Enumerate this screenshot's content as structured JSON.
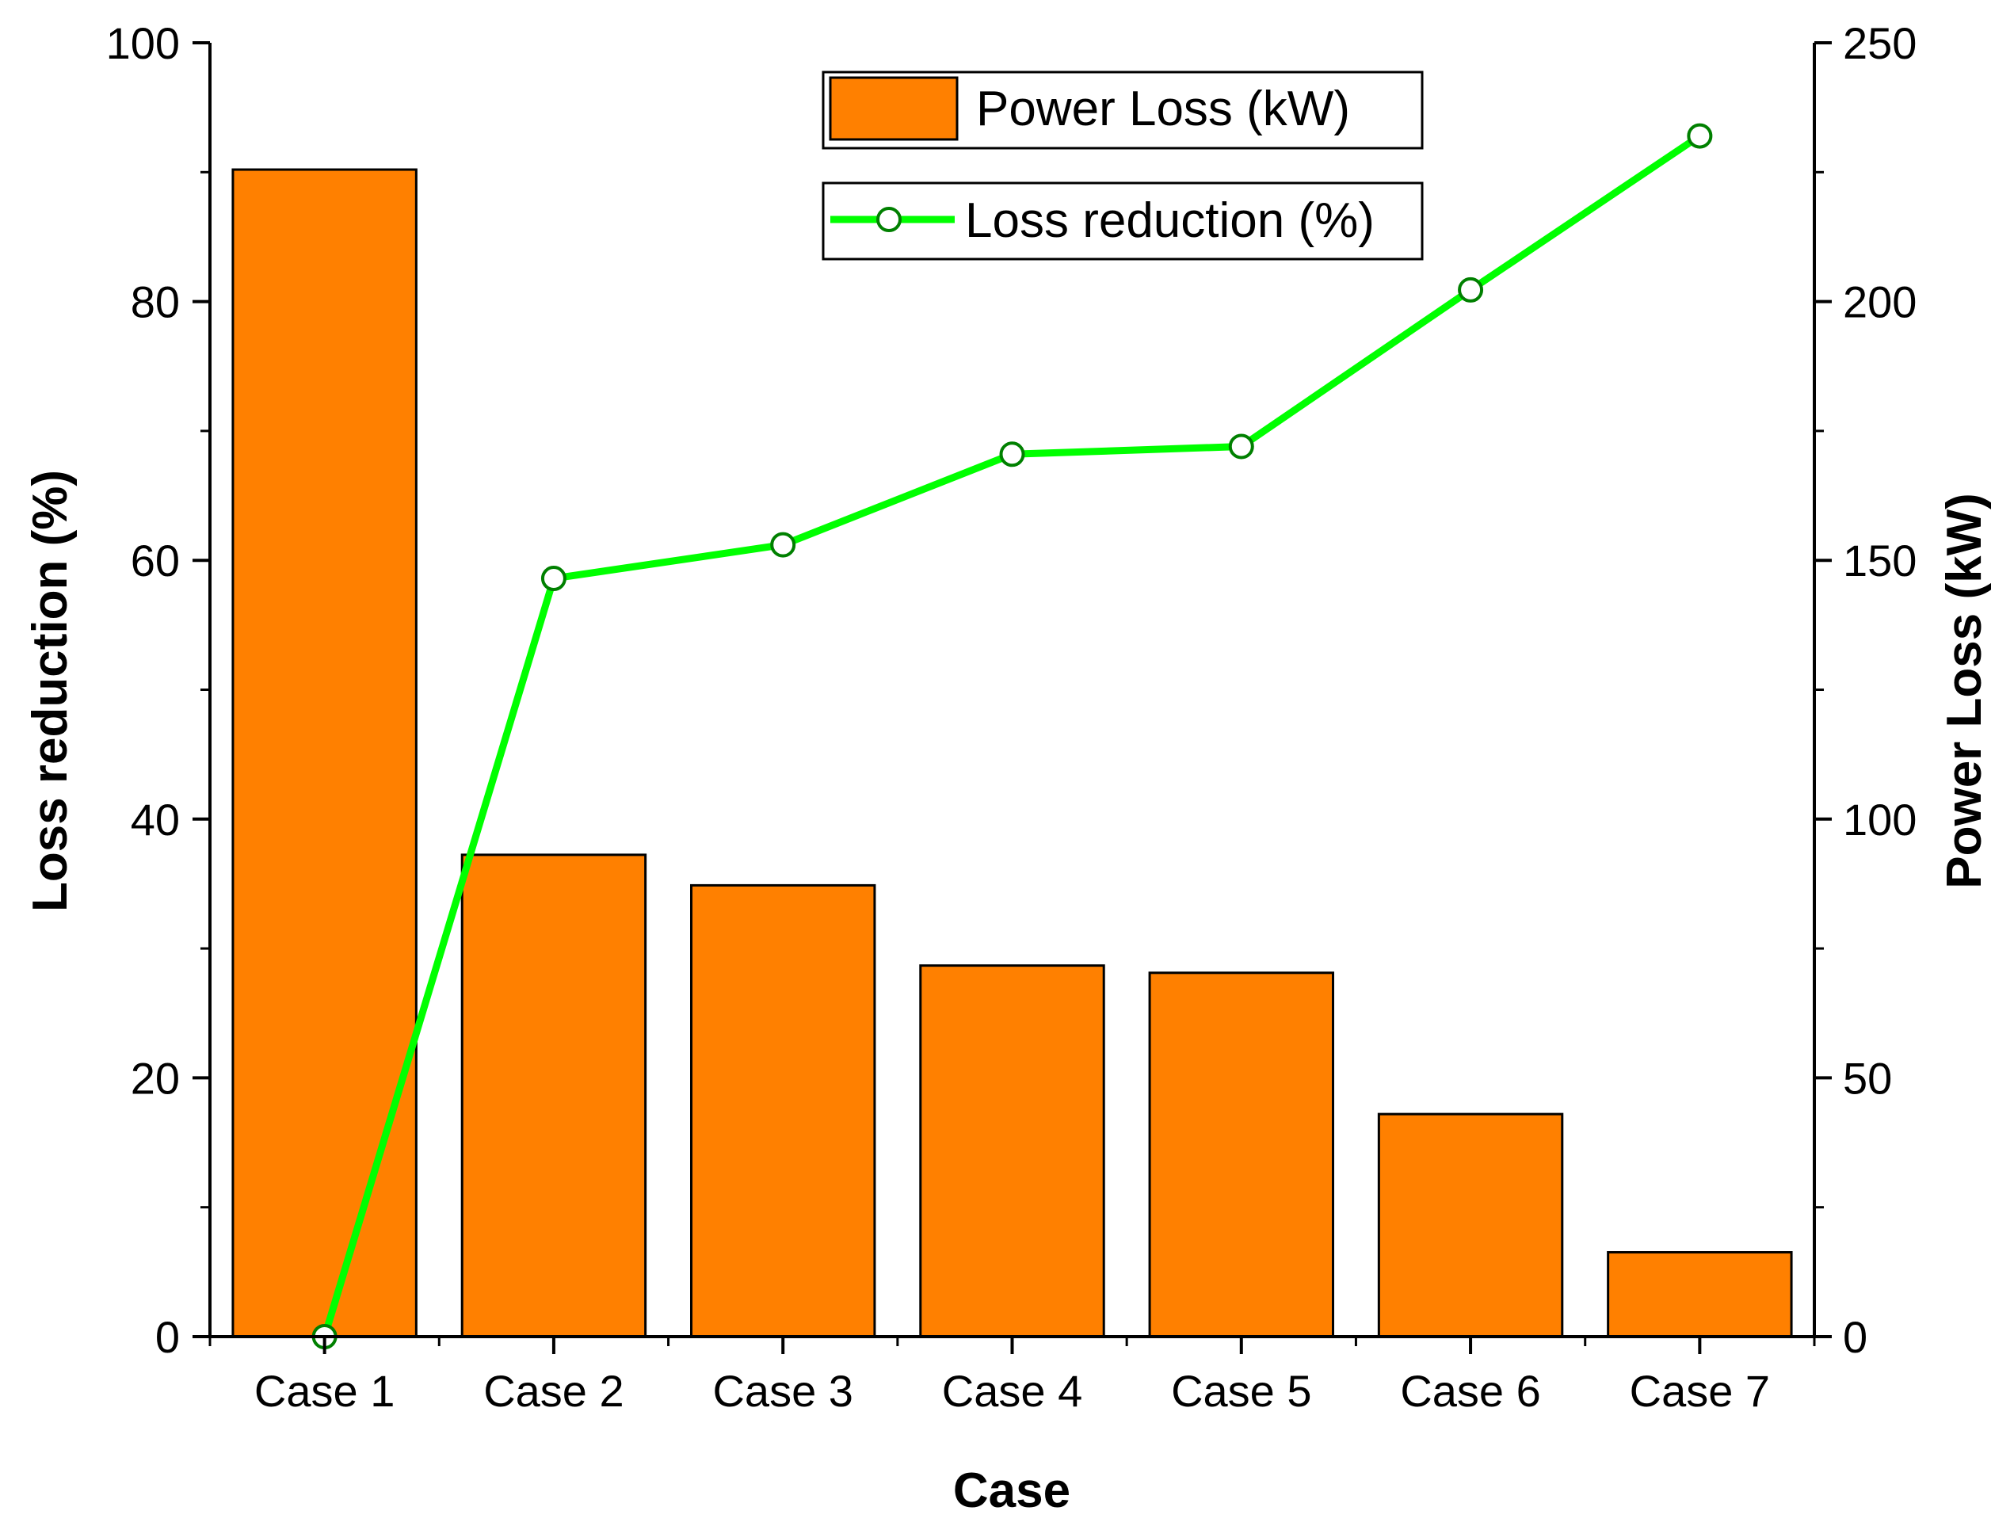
{
  "chart_data": {
    "type": "bar+line",
    "categories": [
      "Case 1",
      "Case 2",
      "Case 3",
      "Case 4",
      "Case 5",
      "Case 6",
      "Case 7"
    ],
    "xlabel": "Case",
    "series": [
      {
        "name": "Power Loss (kW)",
        "kind": "bar",
        "axis": "right",
        "values": [
          225.5,
          93.1,
          87.2,
          71.7,
          70.3,
          43.0,
          16.3
        ],
        "color": "#ff8000"
      },
      {
        "name": "Loss reduction (%)",
        "kind": "line",
        "axis": "left",
        "values": [
          0,
          58.6,
          61.2,
          68.2,
          68.8,
          80.9,
          92.8
        ],
        "color": "#00ff00"
      }
    ],
    "y_left": {
      "label": "Loss reduction (%)",
      "lim": [
        0,
        100
      ],
      "ticks": [
        0,
        20,
        40,
        60,
        80,
        100
      ]
    },
    "y_right": {
      "label": "Power Loss (kW)",
      "lim": [
        0,
        250
      ],
      "ticks": [
        0,
        50,
        100,
        150,
        200,
        250
      ]
    },
    "legend": {
      "position": "top-center"
    },
    "grid": false
  }
}
